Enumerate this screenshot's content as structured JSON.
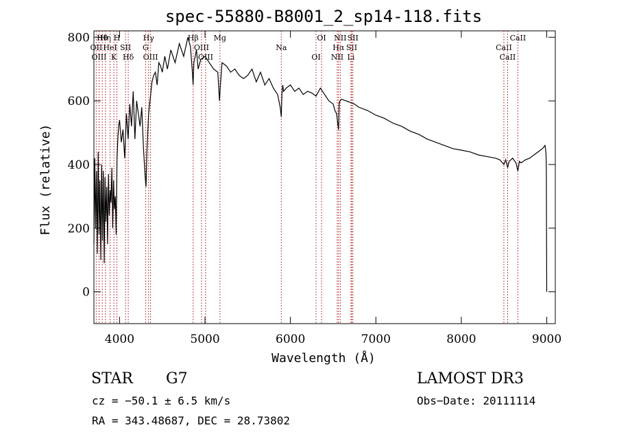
{
  "chart_data": {
    "type": "line",
    "title": "spec-55880-B8001_2_sp14-118.fits",
    "xlabel": "Wavelength (Å)",
    "ylabel": "Flux (relative)",
    "xlim": [
      3700,
      9100
    ],
    "ylim": [
      -100,
      820
    ],
    "xticks": [
      4000,
      5000,
      6000,
      7000,
      8000,
      9000
    ],
    "yticks": [
      0,
      200,
      400,
      600,
      800
    ],
    "series": [
      {
        "name": "flux",
        "color": "#000000",
        "x": [
          3700,
          3710,
          3720,
          3730,
          3740,
          3750,
          3760,
          3770,
          3780,
          3790,
          3800,
          3810,
          3820,
          3830,
          3840,
          3850,
          3860,
          3870,
          3880,
          3890,
          3900,
          3910,
          3920,
          3930,
          3940,
          3950,
          3960,
          3970,
          3980,
          3990,
          4000,
          4020,
          4040,
          4060,
          4080,
          4100,
          4120,
          4140,
          4160,
          4180,
          4200,
          4220,
          4240,
          4260,
          4280,
          4300,
          4310,
          4320,
          4330,
          4340,
          4360,
          4380,
          4400,
          4420,
          4440,
          4460,
          4480,
          4500,
          4530,
          4560,
          4600,
          4650,
          4700,
          4750,
          4800,
          4830,
          4850,
          4861,
          4870,
          4900,
          4920,
          4950,
          5000,
          5050,
          5100,
          5150,
          5170,
          5180,
          5200,
          5250,
          5300,
          5350,
          5400,
          5450,
          5500,
          5550,
          5600,
          5650,
          5700,
          5750,
          5800,
          5850,
          5880,
          5893,
          5900,
          5910,
          5920,
          5950,
          6000,
          6050,
          6100,
          6150,
          6200,
          6250,
          6300,
          6350,
          6400,
          6450,
          6500,
          6520,
          6540,
          6563,
          6570,
          6580,
          6600,
          6650,
          6700,
          6750,
          6800,
          6900,
          7000,
          7100,
          7200,
          7300,
          7400,
          7500,
          7600,
          7700,
          7800,
          7900,
          8000,
          8100,
          8200,
          8300,
          8400,
          8450,
          8498,
          8520,
          8542,
          8560,
          8600,
          8640,
          8662,
          8680,
          8700,
          8750,
          8800,
          8850,
          8900,
          8950,
          8980,
          8990,
          8995,
          9000
        ],
        "values": [
          150,
          420,
          200,
          380,
          120,
          440,
          180,
          350,
          100,
          400,
          160,
          380,
          90,
          360,
          220,
          330,
          150,
          370,
          240,
          320,
          280,
          390,
          200,
          350,
          260,
          300,
          180,
          420,
          480,
          520,
          540,
          470,
          510,
          420,
          560,
          480,
          590,
          520,
          630,
          480,
          600,
          560,
          520,
          580,
          450,
          360,
          330,
          440,
          500,
          560,
          610,
          660,
          680,
          690,
          650,
          720,
          710,
          690,
          740,
          700,
          760,
          720,
          780,
          740,
          800,
          770,
          700,
          650,
          720,
          760,
          700,
          730,
          740,
          720,
          700,
          690,
          600,
          650,
          720,
          710,
          690,
          700,
          680,
          670,
          680,
          700,
          660,
          690,
          650,
          670,
          640,
          620,
          580,
          550,
          620,
          650,
          630,
          640,
          650,
          630,
          640,
          620,
          630,
          625,
          615,
          640,
          620,
          600,
          590,
          570,
          560,
          510,
          590,
          600,
          605,
          600,
          595,
          590,
          580,
          570,
          555,
          545,
          530,
          520,
          505,
          495,
          480,
          470,
          460,
          450,
          445,
          440,
          430,
          425,
          420,
          415,
          400,
          415,
          390,
          410,
          420,
          405,
          380,
          410,
          405,
          415,
          420,
          430,
          440,
          450,
          460,
          440,
          400,
          0
        ]
      }
    ],
    "lines": [
      {
        "label": "Hθ",
        "x": 3798
      },
      {
        "label": "OII",
        "x": 3727
      },
      {
        "label": "OIII",
        "x": 3760
      },
      {
        "label": "Hη",
        "x": 3835
      },
      {
        "label": "HeI",
        "x": 3889
      },
      {
        "label": "K",
        "x": 3934
      },
      {
        "label": "H",
        "x": 3969
      },
      {
        "label": "SII",
        "x": 4070
      },
      {
        "label": "Hδ",
        "x": 4102
      },
      {
        "label": "Hγ",
        "x": 4340
      },
      {
        "label": "G",
        "x": 4305
      },
      {
        "label": "OIII",
        "x": 4363
      },
      {
        "label": "Hβ",
        "x": 4861
      },
      {
        "label": "OIII",
        "x": 4959
      },
      {
        "label": "OIII",
        "x": 5007
      },
      {
        "label": "Mg",
        "x": 5175
      },
      {
        "label": "Na",
        "x": 5893
      },
      {
        "label": "OI",
        "x": 6300
      },
      {
        "label": "OI",
        "x": 6364
      },
      {
        "label": "Hα",
        "x": 6563
      },
      {
        "label": "NII",
        "x": 6548
      },
      {
        "label": "NII",
        "x": 6583
      },
      {
        "label": "SII",
        "x": 6717
      },
      {
        "label": "Li",
        "x": 6708
      },
      {
        "label": "SII",
        "x": 6731
      },
      {
        "label": "CaII",
        "x": 8498
      },
      {
        "label": "CaII",
        "x": 8542
      },
      {
        "label": "CaII",
        "x": 8662
      }
    ]
  },
  "info": {
    "class_label": "STAR",
    "subclass": "G7",
    "survey": "LAMOST DR3",
    "cz": "cz = −50.1 ± 6.5 km/s",
    "obs_date": "Obs−Date: 20111114",
    "coords": "RA = 343.48687, DEC =  28.73802"
  }
}
